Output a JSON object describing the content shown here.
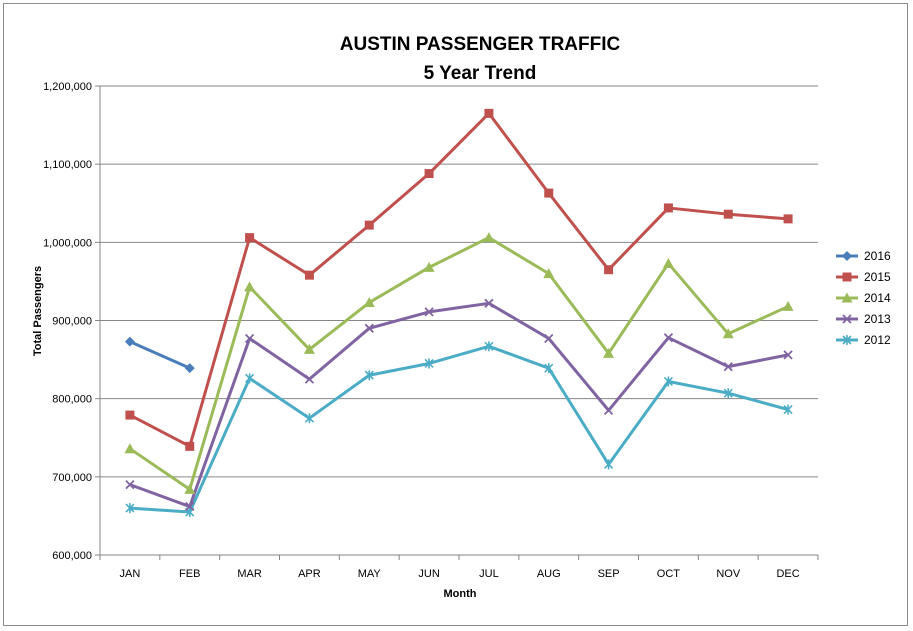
{
  "chart_data": {
    "type": "line",
    "title": "AUSTIN PASSENGER TRAFFIC",
    "subtitle": "5 Year Trend",
    "xlabel": "Month",
    "ylabel": "Total Passengers",
    "categories": [
      "JAN",
      "FEB",
      "MAR",
      "APR",
      "MAY",
      "JUN",
      "JUL",
      "AUG",
      "SEP",
      "OCT",
      "NOV",
      "DEC"
    ],
    "ylim": [
      600000,
      1200000
    ],
    "y_ticks": [
      600000,
      700000,
      800000,
      900000,
      1000000,
      1100000,
      1200000
    ],
    "y_tick_labels": [
      "600,000",
      "700,000",
      "800,000",
      "900,000",
      "1,000,000",
      "1,100,000",
      "1,200,000"
    ],
    "grid": "horizontal",
    "legend_position": "right",
    "series": [
      {
        "name": "2016",
        "color": "#4a7ebb",
        "marker": "diamond",
        "values": [
          873000,
          839000,
          null,
          null,
          null,
          null,
          null,
          null,
          null,
          null,
          null,
          null
        ]
      },
      {
        "name": "2015",
        "color": "#c0504d",
        "marker": "square",
        "values": [
          779000,
          739000,
          1006000,
          958000,
          1022000,
          1088000,
          1165000,
          1063000,
          965000,
          1044000,
          1036000,
          1030000
        ]
      },
      {
        "name": "2014",
        "color": "#9bbb59",
        "marker": "triangle",
        "values": [
          736000,
          684000,
          943000,
          863000,
          923000,
          968000,
          1006000,
          960000,
          858000,
          973000,
          883000,
          918000
        ]
      },
      {
        "name": "2013",
        "color": "#8064a2",
        "marker": "x",
        "values": [
          690000,
          662000,
          877000,
          825000,
          890000,
          911000,
          922000,
          877000,
          785000,
          878000,
          841000,
          856000
        ]
      },
      {
        "name": "2012",
        "color": "#4bacc6",
        "marker": "star",
        "values": [
          660000,
          655000,
          826000,
          775000,
          830000,
          845000,
          867000,
          839000,
          716000,
          822000,
          807000,
          786000
        ]
      }
    ]
  }
}
